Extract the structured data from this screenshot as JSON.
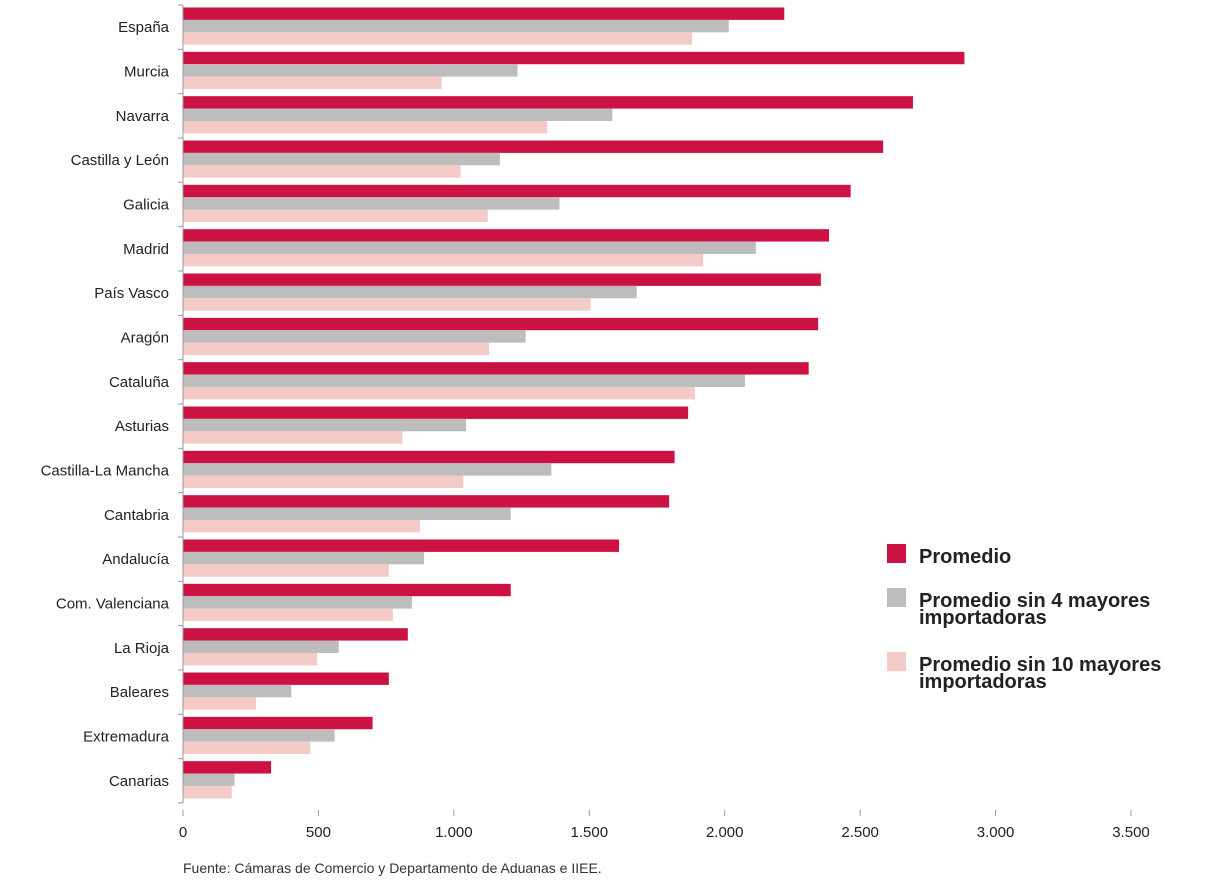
{
  "chart_data": {
    "type": "bar",
    "orientation": "horizontal",
    "categories": [
      "España",
      "Murcia",
      "Navarra",
      "Castilla y León",
      "Galicia",
      "Madrid",
      "País Vasco",
      "Aragón",
      "Cataluña",
      "Asturias",
      "Castilla-La Mancha",
      "Cantabria",
      "Andalucía",
      "Com. Valenciana",
      "La Rioja",
      "Baleares",
      "Extremadura",
      "Canarias"
    ],
    "series": [
      {
        "name": "Promedio",
        "color": "#cc1242",
        "values": [
          2220,
          2885,
          2695,
          2585,
          2465,
          2385,
          2355,
          2345,
          2310,
          1865,
          1815,
          1795,
          1610,
          1210,
          830,
          760,
          700,
          325
        ]
      },
      {
        "name": "Promedio sin 4 mayores importadoras",
        "color": "#bdbdbd",
        "values": [
          2015,
          1235,
          1585,
          1170,
          1390,
          2115,
          1675,
          1265,
          2075,
          1045,
          1360,
          1210,
          890,
          845,
          575,
          400,
          560,
          190
        ]
      },
      {
        "name": "Promedio sin 10 mayores importadoras",
        "color": "#f5cbc8",
        "values": [
          1880,
          955,
          1345,
          1025,
          1125,
          1920,
          1505,
          1130,
          1890,
          810,
          1035,
          875,
          760,
          775,
          495,
          270,
          470,
          180
        ]
      }
    ],
    "xlim": [
      0,
      3500
    ],
    "xticks": [
      0,
      500,
      1000,
      1500,
      2000,
      2500,
      3000,
      3500
    ],
    "xtick_labels": [
      "0",
      "500",
      "1.000",
      "1.500",
      "2.000",
      "2.500",
      "3.000",
      "3.500"
    ],
    "grid": false,
    "legend_position": "right"
  },
  "legend": [
    {
      "lines": [
        "Promedio"
      ]
    },
    {
      "lines": [
        "Promedio sin 4 mayores",
        "importadoras"
      ]
    },
    {
      "lines": [
        "Promedio sin 10 mayores",
        "importadoras"
      ]
    }
  ],
  "source_note": "Fuente: Cámaras de Comercio y Departamento de Aduanas e IIEE."
}
